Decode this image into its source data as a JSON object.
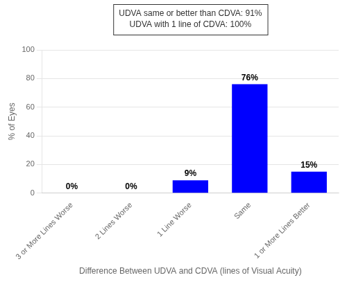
{
  "chart_data": {
    "type": "bar",
    "categories": [
      "3 or More Lines Worse",
      "2 Lines Worse",
      "1 Line Worse",
      "Same",
      "1 or More Lines Better"
    ],
    "values": [
      0,
      0,
      9,
      76,
      15
    ],
    "value_labels": [
      "0%",
      "0%",
      "9%",
      "76%",
      "15%"
    ],
    "data_labels": true,
    "color": "#0000ff",
    "xlabel": "Difference Between UDVA and CDVA (lines of Visual Acuity)",
    "ylabel": "% of Eyes",
    "ylim": [
      0,
      100
    ],
    "yticks": [
      0,
      20,
      40,
      60,
      80,
      100
    ],
    "grid": true,
    "annotations": [
      "UDVA same or better than CDVA: 91%",
      "UDVA with 1 line of CDVA: 100%"
    ]
  }
}
